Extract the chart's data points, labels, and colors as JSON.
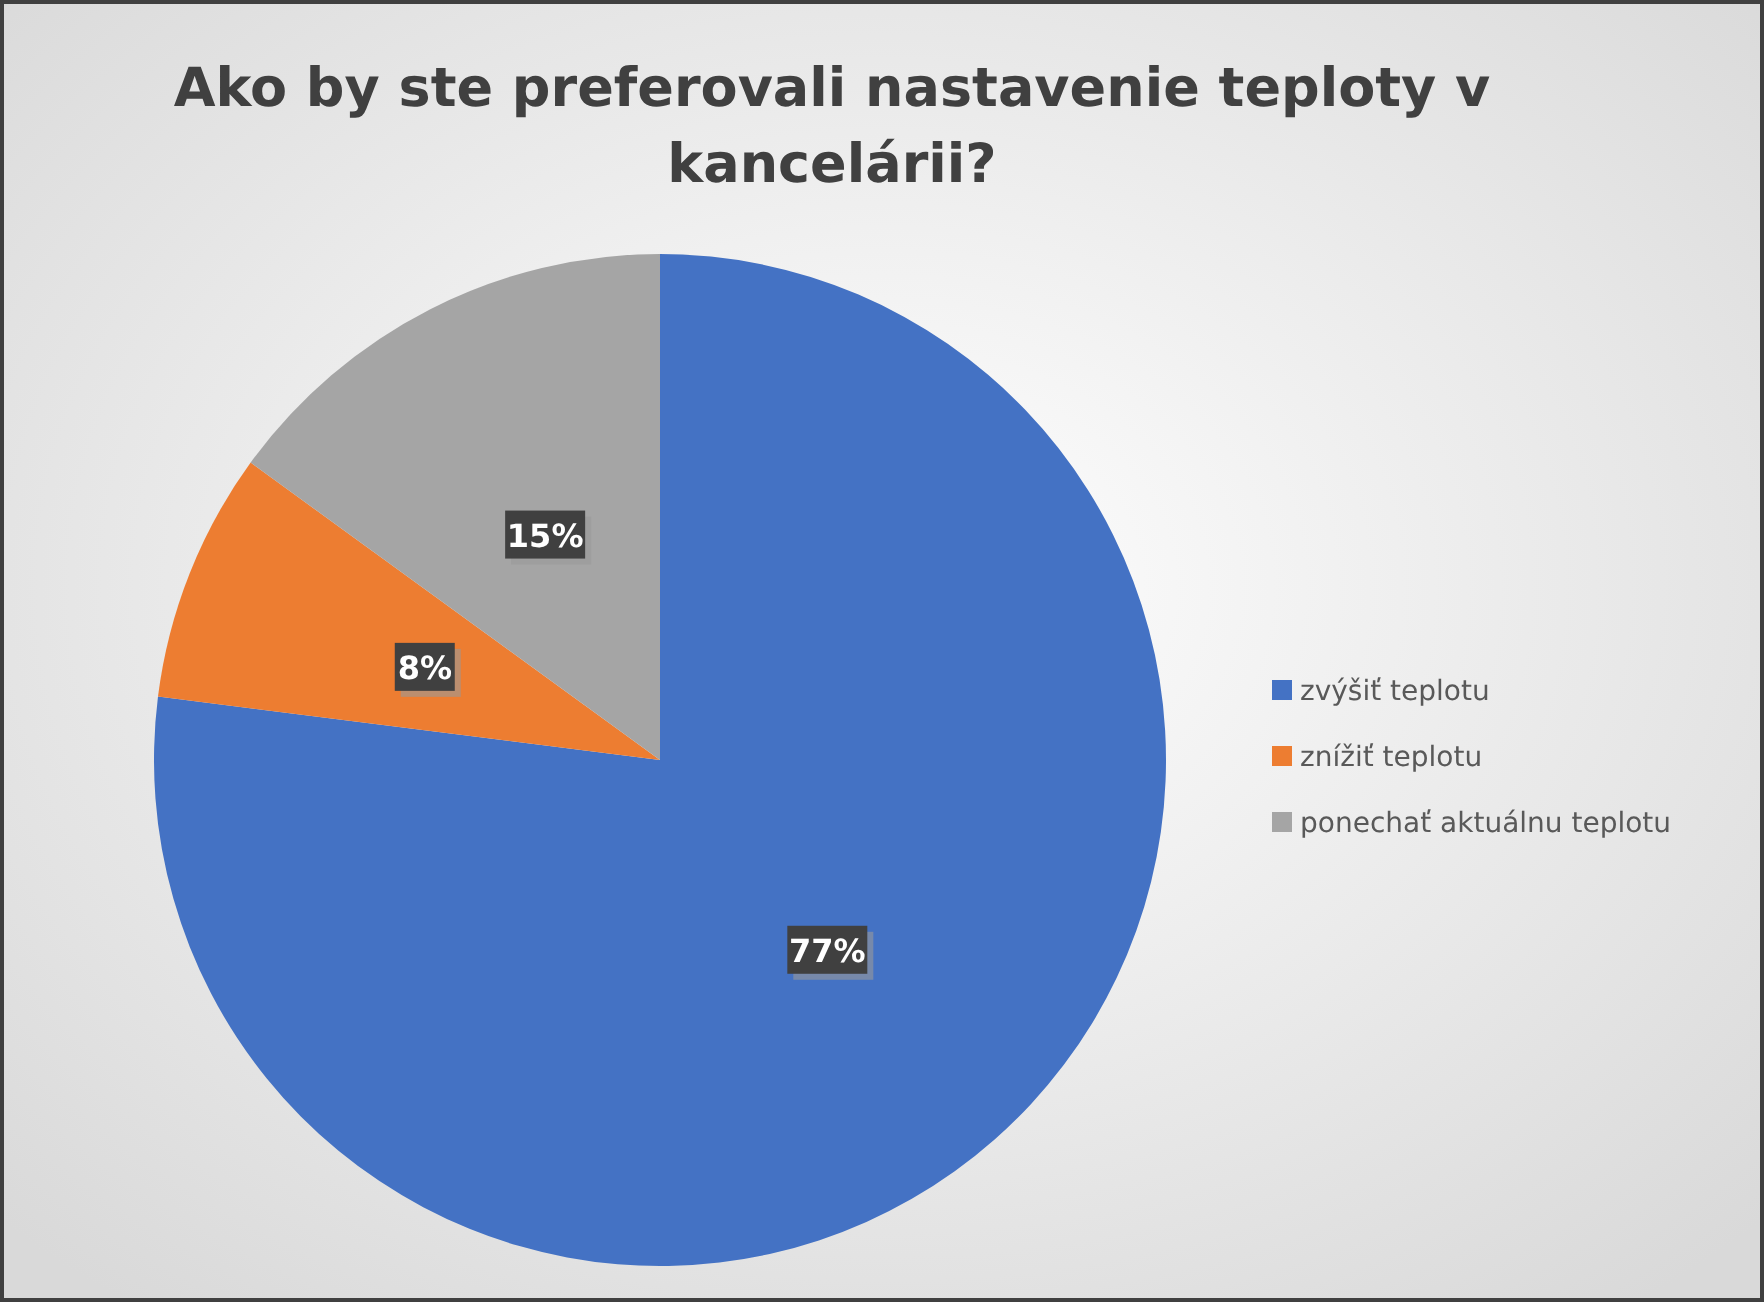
{
  "chart_data": {
    "type": "pie",
    "title": "Ako by ste preferovali nastavenie teploty v kancelárii?",
    "categories": [
      "zvýšiť teplotu",
      "znížiť teplotu",
      "ponechať aktuálnu teplotu"
    ],
    "values": [
      77,
      8,
      15
    ],
    "colors": [
      "#4472c4",
      "#ed7d31",
      "#a5a5a5"
    ],
    "value_labels": [
      "77%",
      "8%",
      "15%"
    ],
    "legend": "right"
  }
}
